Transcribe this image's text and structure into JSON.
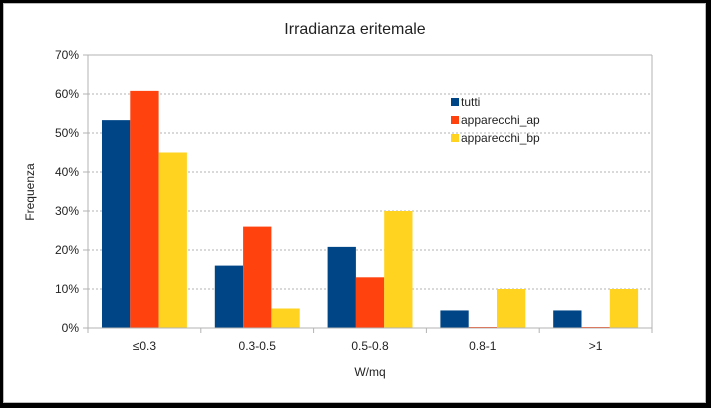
{
  "chart_data": {
    "type": "bar",
    "title": "Irradianza eritemale",
    "xlabel": "W/mq",
    "ylabel": "Frequenza",
    "categories": [
      "≤0.3",
      "0.3-0.5",
      "0.5-0.8",
      "0.8-1",
      ">1"
    ],
    "ylim": [
      0,
      70
    ],
    "yticks": [
      "0%",
      "10%",
      "20%",
      "30%",
      "40%",
      "50%",
      "60%",
      "70%"
    ],
    "grid": true,
    "legend_position": "top-right",
    "series": [
      {
        "name": "tutti",
        "color": "#004586",
        "values": [
          53.3,
          16,
          20.8,
          4.5,
          4.5
        ]
      },
      {
        "name": "apparecchi_ap",
        "color": "#ff420e",
        "values": [
          60.8,
          26,
          13,
          0,
          0
        ]
      },
      {
        "name": "apparecchi_bp",
        "color": "#ffd320",
        "values": [
          45,
          5,
          30,
          10,
          10
        ]
      }
    ]
  }
}
